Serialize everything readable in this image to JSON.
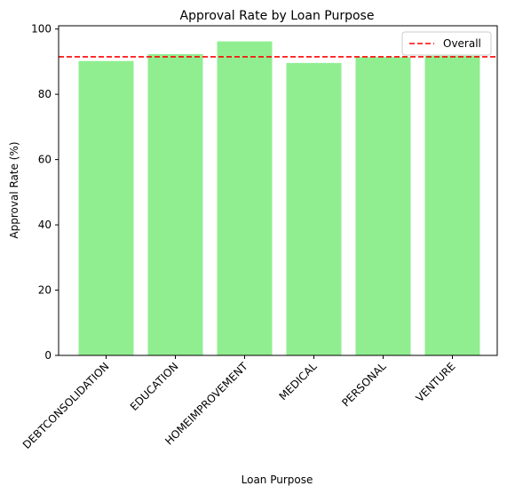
{
  "chart_data": {
    "type": "bar",
    "title": "Approval Rate by Loan Purpose",
    "xlabel": "Loan Purpose",
    "ylabel": "Approval Rate (%)",
    "categories": [
      "DEBTCONSOLIDATION",
      "EDUCATION",
      "HOMEIMPROVEMENT",
      "MEDICAL",
      "PERSONAL",
      "VENTURE"
    ],
    "values": [
      90.2,
      92.3,
      96.2,
      89.6,
      91.4,
      91.8
    ],
    "ylim": [
      0,
      101
    ],
    "yticks": [
      0,
      20,
      40,
      60,
      80,
      100
    ],
    "reference_line": {
      "name": "Overall",
      "value": 91.5,
      "style": "dashed"
    },
    "bar_color": "#90ee90",
    "reference_color": "#ff0000",
    "legend_position": "top-right",
    "grid": false
  }
}
